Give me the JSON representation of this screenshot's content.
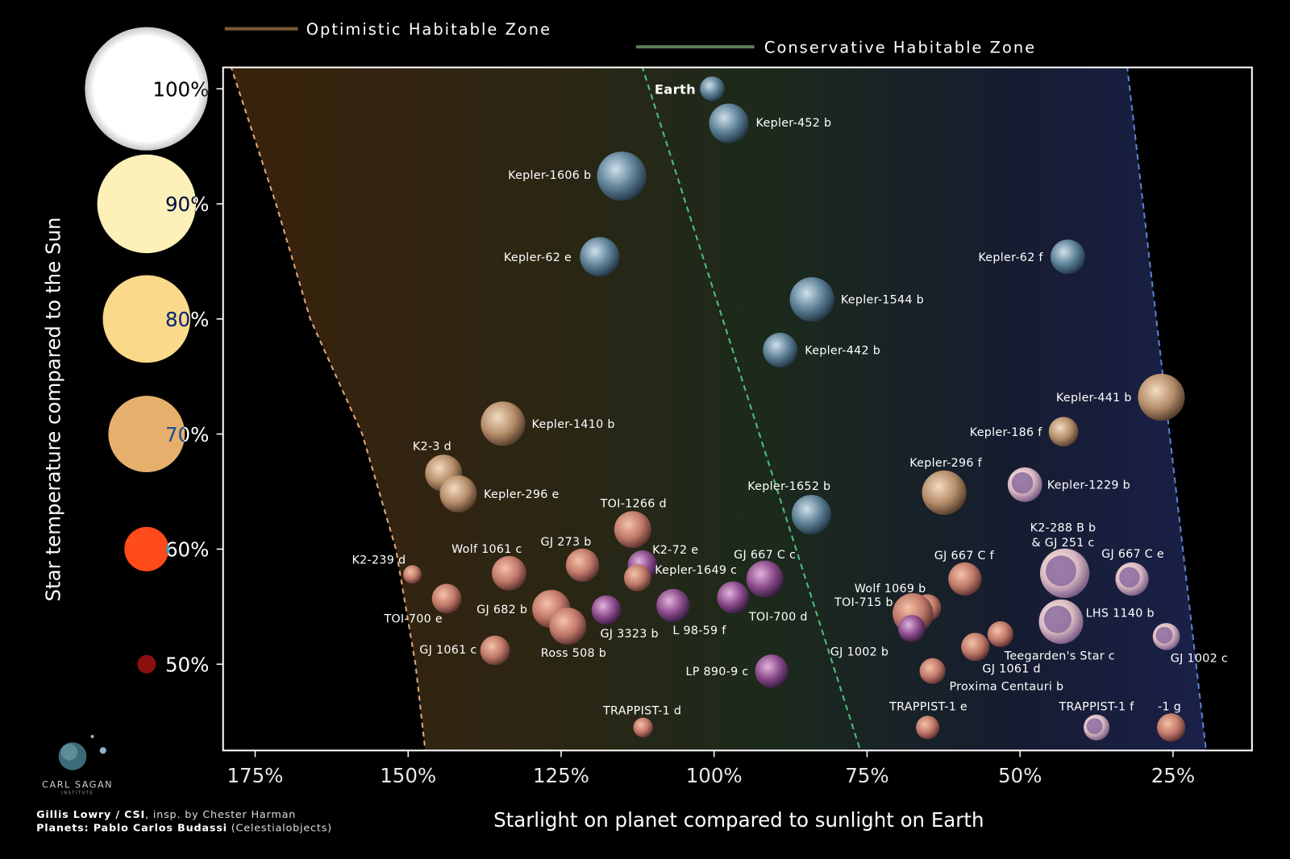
{
  "chart_data": {
    "type": "scatter",
    "xlabel": "Starlight on planet compared to sunlight on Earth",
    "ylabel": "Star temperature compared to the Sun",
    "xlim": [
      180,
      12
    ],
    "ylim": [
      42.5,
      102
    ],
    "x_reversed": true,
    "x_ticks": [
      {
        "value": 175,
        "label": "175%"
      },
      {
        "value": 150,
        "label": "150%"
      },
      {
        "value": 125,
        "label": "125%"
      },
      {
        "value": 100,
        "label": "100%"
      },
      {
        "value": 75,
        "label": "75%"
      },
      {
        "value": 50,
        "label": "50%"
      },
      {
        "value": 25,
        "label": "25%"
      }
    ],
    "y_ticks": [
      {
        "value": 100,
        "label": "100%",
        "star_color": "#ffffff",
        "star_radius_rel": 1.0
      },
      {
        "value": 90,
        "label": "90%",
        "star_color": "#fdf0b8",
        "star_radius_rel": 0.8
      },
      {
        "value": 80,
        "label": "80%",
        "star_color": "#fbd98a",
        "star_radius_rel": 0.71
      },
      {
        "value": 70,
        "label": "70%",
        "star_color": "#e6b06c",
        "star_radius_rel": 0.62
      },
      {
        "value": 60,
        "label": "60%",
        "star_color": "#ff4a1a",
        "star_radius_rel": 0.36
      },
      {
        "value": 50,
        "label": "50%",
        "star_color": "#8b1010",
        "star_radius_rel": 0.15
      }
    ],
    "grid": false,
    "zones": {
      "optimistic": {
        "label": "Optimistic Habitable Zone",
        "color_inner": "#7a5a35",
        "inner_edge": [
          [
            102,
            179
          ],
          [
            90,
            171.6
          ],
          [
            80,
            166
          ],
          [
            70,
            157.5
          ],
          [
            60,
            152
          ],
          [
            50,
            148.8
          ],
          [
            42.5,
            147.2
          ]
        ]
      },
      "conservative": {
        "label": "Conservative Habitable Zone",
        "color_inner": "#5e7a5a",
        "inner_edge": [
          [
            102,
            111.8
          ],
          [
            42.5,
            76.1
          ]
        ]
      },
      "outer_edge": [
        [
          102,
          32.5
        ],
        [
          42.5,
          19.6
        ]
      ],
      "outer_color": "#4a5a90",
      "legend_placement": "top"
    },
    "planet_colors": {
      "earthlike": [
        "#cfe0ea",
        "#5b7f95",
        "#1d2f3e"
      ],
      "tan": [
        "#f3dcc0",
        "#b58d6a",
        "#4a3424"
      ],
      "pink": [
        "#f4c2a8",
        "#c07868",
        "#4e2a2a"
      ],
      "purple": [
        "#e2b4dc",
        "#8a4a8a",
        "#2e1838"
      ],
      "cream": [
        "#fff2e6",
        "#d9b8c0",
        "#6d5080"
      ]
    },
    "points": [
      {
        "name": "Earth",
        "x": 100.3,
        "y": 100,
        "radius": 1.0,
        "type": "earthlike",
        "bold": true
      },
      {
        "name": "Kepler-452 b",
        "x": 97.6,
        "y": 97.0,
        "radius": 1.6,
        "type": "earthlike"
      },
      {
        "name": "Kepler-1606 b",
        "x": 115.1,
        "y": 92.4,
        "radius": 2.0,
        "type": "earthlike"
      },
      {
        "name": "Kepler-62 e",
        "x": 118.7,
        "y": 85.4,
        "radius": 1.6,
        "type": "earthlike"
      },
      {
        "name": "Kepler-62 f",
        "x": 42.2,
        "y": 85.4,
        "radius": 1.4,
        "type": "earthlike"
      },
      {
        "name": "Kepler-1544 b",
        "x": 84.0,
        "y": 81.7,
        "radius": 1.8,
        "type": "earthlike"
      },
      {
        "name": "Kepler-442 b",
        "x": 89.2,
        "y": 77.3,
        "radius": 1.4,
        "type": "earthlike"
      },
      {
        "name": "Kepler-441 b",
        "x": 26.9,
        "y": 73.2,
        "radius": 1.9,
        "type": "tan"
      },
      {
        "name": "Kepler-186 f",
        "x": 42.9,
        "y": 70.2,
        "radius": 1.2,
        "type": "tan"
      },
      {
        "name": "Kepler-1410 b",
        "x": 134.5,
        "y": 70.9,
        "radius": 1.8,
        "type": "tan"
      },
      {
        "name": "K2-3 d",
        "x": 144.2,
        "y": 66.6,
        "radius": 1.5,
        "type": "tan"
      },
      {
        "name": "Kepler-296 e",
        "x": 141.8,
        "y": 64.8,
        "radius": 1.5,
        "type": "tan"
      },
      {
        "name": "Kepler-296 f",
        "x": 62.4,
        "y": 64.9,
        "radius": 1.8,
        "type": "tan"
      },
      {
        "name": "Kepler-1229 b",
        "x": 49.2,
        "y": 65.6,
        "radius": 1.4,
        "type": "cream"
      },
      {
        "name": "Kepler-1652 b",
        "x": 84.1,
        "y": 63.0,
        "radius": 1.6,
        "type": "earthlike"
      },
      {
        "name": "TOI-1266 d",
        "x": 113.3,
        "y": 61.7,
        "radius": 1.5,
        "type": "pink"
      },
      {
        "name": "K2-239 d",
        "x": 149.3,
        "y": 57.8,
        "radius": 0.75,
        "type": "pink"
      },
      {
        "name": "Wolf 1061 c",
        "x": 133.5,
        "y": 57.9,
        "radius": 1.4,
        "type": "pink"
      },
      {
        "name": "GJ 273 b",
        "x": 121.5,
        "y": 58.6,
        "radius": 1.35,
        "type": "pink"
      },
      {
        "name": "K2-72 e",
        "x": 111.7,
        "y": 58.6,
        "radius": 1.2,
        "type": "purple"
      },
      {
        "name": "Kepler-1649 c",
        "x": 112.5,
        "y": 57.5,
        "radius": 1.1,
        "type": "pink"
      },
      {
        "name": "GJ 667 C c",
        "x": 91.7,
        "y": 57.4,
        "radius": 1.5,
        "type": "purple"
      },
      {
        "name": "TOI-700 e",
        "x": 143.7,
        "y": 55.7,
        "radius": 1.2,
        "type": "pink"
      },
      {
        "name": "GJ 682 b",
        "x": 126.6,
        "y": 54.8,
        "radius": 1.55,
        "type": "pink"
      },
      {
        "name": "Ross 508 b",
        "x": 123.9,
        "y": 53.3,
        "radius": 1.5,
        "type": "pink"
      },
      {
        "name": "GJ 3323 b",
        "x": 117.6,
        "y": 54.7,
        "radius": 1.2,
        "type": "purple"
      },
      {
        "name": "L 98-59 f",
        "x": 106.7,
        "y": 55.1,
        "radius": 1.35,
        "type": "purple"
      },
      {
        "name": "TOI-700 d",
        "x": 96.9,
        "y": 55.8,
        "radius": 1.3,
        "type": "purple"
      },
      {
        "name": "GJ 1061 c",
        "x": 135.8,
        "y": 51.2,
        "radius": 1.2,
        "type": "pink"
      },
      {
        "name": "LP 890-9 c",
        "x": 90.6,
        "y": 49.4,
        "radius": 1.35,
        "type": "purple"
      },
      {
        "name": "TRAPPIST-1 d",
        "x": 111.6,
        "y": 44.5,
        "radius": 0.8,
        "type": "pink"
      },
      {
        "name": "GJ 667 C f",
        "x": 59.0,
        "y": 57.4,
        "radius": 1.35,
        "type": "pink"
      },
      {
        "name": "K2-288 B b",
        "name2": "& GJ 251 c",
        "x": 42.7,
        "y": 57.9,
        "radius": 2.0,
        "type": "cream"
      },
      {
        "name": "GJ 667 C e",
        "x": 31.7,
        "y": 57.4,
        "radius": 1.35,
        "type": "cream"
      },
      {
        "name": "Wolf 1069 b",
        "x": 65.1,
        "y": 54.9,
        "radius": 1.1,
        "type": "pink"
      },
      {
        "name": "TOI-715 b",
        "x": 67.5,
        "y": 54.4,
        "radius": 1.65,
        "type": "pink"
      },
      {
        "name": "LHS 1140 b",
        "x": 43.3,
        "y": 53.7,
        "radius": 1.8,
        "type": "cream"
      },
      {
        "name": "GJ 1002 b",
        "x": 67.7,
        "y": 53.1,
        "radius": 1.1,
        "type": "purple"
      },
      {
        "name": "GJ 1061 d",
        "x": 57.3,
        "y": 51.5,
        "radius": 1.15,
        "type": "pink"
      },
      {
        "name": "Teegarden's Star c",
        "x": 53.2,
        "y": 52.6,
        "radius": 1.05,
        "type": "pink"
      },
      {
        "name": "GJ 1002 c",
        "x": 26.1,
        "y": 52.4,
        "radius": 1.1,
        "type": "cream"
      },
      {
        "name": "Proxima Centauri b",
        "x": 64.3,
        "y": 49.4,
        "radius": 1.05,
        "type": "pink"
      },
      {
        "name": "TRAPPIST-1 e",
        "x": 65.1,
        "y": 44.5,
        "radius": 0.95,
        "type": "pink"
      },
      {
        "name": "TRAPPIST-1 f",
        "x": 37.5,
        "y": 44.5,
        "radius": 1.05,
        "type": "cream"
      },
      {
        "name": "-1 g",
        "x": 25.3,
        "y": 44.5,
        "radius": 1.15,
        "type": "pink"
      }
    ]
  },
  "logo": {
    "name": "CARL SAGAN",
    "sub": "INSTITUTE"
  },
  "credits": {
    "line1_bold": "Gillis Lowry / CSI",
    "line1_rest": ", insp. by Chester Harman",
    "line2_bold": "Planets: Pablo Carlos Budassi",
    "line2_rest": " (Celestialobjects)"
  }
}
